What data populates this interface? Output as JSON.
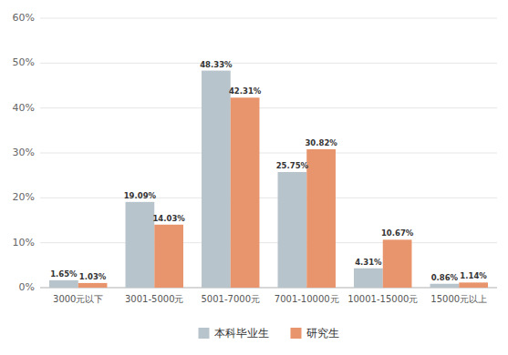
{
  "chart_data": {
    "type": "bar",
    "categories": [
      "3000元以下",
      "3001-5000元",
      "5001-7000元",
      "7001-10000元",
      "10001-15000元",
      "15000元以上"
    ],
    "series": [
      {
        "name": "本科毕业生",
        "color": "#b8c4cb",
        "values": [
          1.65,
          19.09,
          48.33,
          25.75,
          4.31,
          0.86
        ],
        "value_labels": [
          "1.65%",
          "19.09%",
          "48.33%",
          "25.75%",
          "4.31%",
          "0.86%"
        ]
      },
      {
        "name": "研究生",
        "color": "#e8956d",
        "values": [
          1.03,
          14.03,
          42.31,
          30.82,
          10.67,
          1.14
        ],
        "value_labels": [
          "1.03%",
          "14.03%",
          "42.31%",
          "30.82%",
          "10.67%",
          "1.14%"
        ]
      }
    ],
    "ylim": [
      0,
      60
    ],
    "yticks": [
      {
        "value": 0,
        "label": "0%"
      },
      {
        "value": 10,
        "label": "10%"
      },
      {
        "value": 20,
        "label": "20%"
      },
      {
        "value": 30,
        "label": "30%"
      },
      {
        "value": 40,
        "label": "40%"
      },
      {
        "value": 50,
        "label": "50%"
      },
      {
        "value": 60,
        "label": "60%"
      }
    ],
    "grid": true,
    "data_labels": true,
    "legend": "bottom"
  }
}
